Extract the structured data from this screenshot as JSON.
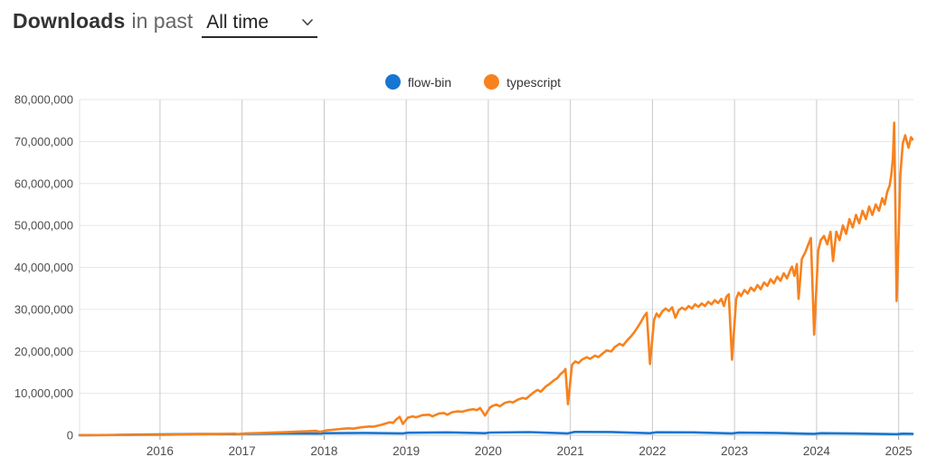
{
  "header": {
    "title_bold": "Downloads",
    "title_mid": "in past",
    "period_selected": "All time"
  },
  "legend": [
    {
      "name": "flow-bin",
      "color": "#1776d2"
    },
    {
      "name": "typescript",
      "color": "#f7821e"
    }
  ],
  "colors": {
    "flow_bin_line": "#1776d2",
    "typescript_line": "#f7821e",
    "h_gridline": "#e6e6e6",
    "v_gridline": "#c9c9c9",
    "axis_text": "#4d4d4d"
  },
  "chart_data": {
    "type": "line",
    "title": "Downloads in past All time",
    "xlabel": "",
    "ylabel": "",
    "values_unit": "millions of weekly downloads",
    "grid": true,
    "legend_position": "top-center",
    "x_axis": {
      "range": [
        2015.02,
        2025.18
      ],
      "ticks": [
        {
          "value": 2016,
          "label": "2016"
        },
        {
          "value": 2017,
          "label": "2017"
        },
        {
          "value": 2018,
          "label": "2018"
        },
        {
          "value": 2019,
          "label": "2019"
        },
        {
          "value": 2020,
          "label": "2020"
        },
        {
          "value": 2021,
          "label": "2021"
        },
        {
          "value": 2022,
          "label": "2022"
        },
        {
          "value": 2023,
          "label": "2023"
        },
        {
          "value": 2024,
          "label": "2024"
        },
        {
          "value": 2025,
          "label": "2025"
        }
      ]
    },
    "y_axis": {
      "range": [
        0,
        80
      ],
      "ticks": [
        {
          "value": 0,
          "label": "0"
        },
        {
          "value": 10,
          "label": "10,000,000"
        },
        {
          "value": 20,
          "label": "20,000,000"
        },
        {
          "value": 30,
          "label": "30,000,000"
        },
        {
          "value": 40,
          "label": "40,000,000"
        },
        {
          "value": 50,
          "label": "50,000,000"
        },
        {
          "value": 60,
          "label": "60,000,000"
        },
        {
          "value": 70,
          "label": "70,000,000"
        },
        {
          "value": 80,
          "label": "80,000,000"
        }
      ]
    },
    "series": [
      {
        "name": "flow-bin",
        "color": "#1776d2",
        "points": [
          [
            2015.02,
            0.03
          ],
          [
            2015.5,
            0.08
          ],
          [
            2016.0,
            0.2
          ],
          [
            2016.5,
            0.3
          ],
          [
            2016.96,
            0.25
          ],
          [
            2017.0,
            0.35
          ],
          [
            2017.5,
            0.45
          ],
          [
            2017.96,
            0.4
          ],
          [
            2018.0,
            0.5
          ],
          [
            2018.5,
            0.55
          ],
          [
            2018.96,
            0.45
          ],
          [
            2019.02,
            0.6
          ],
          [
            2019.5,
            0.68
          ],
          [
            2019.96,
            0.5
          ],
          [
            2020.02,
            0.65
          ],
          [
            2020.5,
            0.75
          ],
          [
            2020.97,
            0.45
          ],
          [
            2021.05,
            0.8
          ],
          [
            2021.5,
            0.78
          ],
          [
            2021.97,
            0.5
          ],
          [
            2022.05,
            0.72
          ],
          [
            2022.5,
            0.68
          ],
          [
            2022.97,
            0.45
          ],
          [
            2023.05,
            0.62
          ],
          [
            2023.5,
            0.55
          ],
          [
            2023.97,
            0.35
          ],
          [
            2024.05,
            0.5
          ],
          [
            2024.5,
            0.42
          ],
          [
            2024.975,
            0.25
          ],
          [
            2025.05,
            0.38
          ],
          [
            2025.17,
            0.35
          ]
        ]
      },
      {
        "name": "typescript",
        "color": "#f7821e",
        "points": [
          [
            2015.02,
            0.02
          ],
          [
            2015.3,
            0.04
          ],
          [
            2015.6,
            0.07
          ],
          [
            2015.9,
            0.11
          ],
          [
            2015.97,
            0.09
          ],
          [
            2016.1,
            0.14
          ],
          [
            2016.3,
            0.19
          ],
          [
            2016.5,
            0.25
          ],
          [
            2016.7,
            0.31
          ],
          [
            2016.9,
            0.38
          ],
          [
            2016.96,
            0.28
          ],
          [
            2017.05,
            0.45
          ],
          [
            2017.2,
            0.52
          ],
          [
            2017.35,
            0.62
          ],
          [
            2017.5,
            0.72
          ],
          [
            2017.65,
            0.84
          ],
          [
            2017.8,
            0.95
          ],
          [
            2017.9,
            1.05
          ],
          [
            2017.95,
            0.8
          ],
          [
            2018.02,
            1.15
          ],
          [
            2018.1,
            1.3
          ],
          [
            2018.2,
            1.5
          ],
          [
            2018.3,
            1.65
          ],
          [
            2018.35,
            1.58
          ],
          [
            2018.45,
            1.9
          ],
          [
            2018.55,
            2.1
          ],
          [
            2018.6,
            2.05
          ],
          [
            2018.7,
            2.5
          ],
          [
            2018.8,
            3.1
          ],
          [
            2018.84,
            2.95
          ],
          [
            2018.88,
            3.8
          ],
          [
            2018.92,
            4.4
          ],
          [
            2018.96,
            2.7
          ],
          [
            2019.02,
            4.2
          ],
          [
            2019.08,
            4.5
          ],
          [
            2019.12,
            4.3
          ],
          [
            2019.2,
            4.8
          ],
          [
            2019.28,
            4.9
          ],
          [
            2019.32,
            4.5
          ],
          [
            2019.4,
            5.2
          ],
          [
            2019.46,
            5.3
          ],
          [
            2019.5,
            4.9
          ],
          [
            2019.56,
            5.5
          ],
          [
            2019.62,
            5.7
          ],
          [
            2019.68,
            5.6
          ],
          [
            2019.75,
            6.0
          ],
          [
            2019.82,
            6.2
          ],
          [
            2019.86,
            6.0
          ],
          [
            2019.9,
            6.5
          ],
          [
            2019.96,
            4.7
          ],
          [
            2020.02,
            6.6
          ],
          [
            2020.06,
            7.1
          ],
          [
            2020.1,
            7.3
          ],
          [
            2020.14,
            6.9
          ],
          [
            2020.2,
            7.7
          ],
          [
            2020.26,
            8.0
          ],
          [
            2020.3,
            7.8
          ],
          [
            2020.36,
            8.5
          ],
          [
            2020.42,
            8.9
          ],
          [
            2020.46,
            8.7
          ],
          [
            2020.52,
            9.7
          ],
          [
            2020.56,
            10.3
          ],
          [
            2020.6,
            10.8
          ],
          [
            2020.64,
            10.4
          ],
          [
            2020.7,
            11.6
          ],
          [
            2020.75,
            12.3
          ],
          [
            2020.8,
            13.1
          ],
          [
            2020.84,
            13.6
          ],
          [
            2020.88,
            14.6
          ],
          [
            2020.92,
            15.2
          ],
          [
            2020.94,
            15.8
          ],
          [
            2020.97,
            7.4
          ],
          [
            2021.02,
            16.8
          ],
          [
            2021.06,
            17.6
          ],
          [
            2021.1,
            17.2
          ],
          [
            2021.14,
            18.0
          ],
          [
            2021.2,
            18.6
          ],
          [
            2021.24,
            18.2
          ],
          [
            2021.3,
            19.0
          ],
          [
            2021.34,
            18.6
          ],
          [
            2021.4,
            19.6
          ],
          [
            2021.44,
            20.2
          ],
          [
            2021.5,
            20.0
          ],
          [
            2021.54,
            21.0
          ],
          [
            2021.6,
            21.8
          ],
          [
            2021.64,
            21.4
          ],
          [
            2021.7,
            22.8
          ],
          [
            2021.74,
            23.6
          ],
          [
            2021.78,
            24.6
          ],
          [
            2021.82,
            25.8
          ],
          [
            2021.86,
            27.0
          ],
          [
            2021.9,
            28.4
          ],
          [
            2021.93,
            29.2
          ],
          [
            2021.97,
            17.0
          ],
          [
            2022.02,
            27.5
          ],
          [
            2022.05,
            29.0
          ],
          [
            2022.08,
            28.2
          ],
          [
            2022.12,
            29.5
          ],
          [
            2022.16,
            30.2
          ],
          [
            2022.2,
            29.6
          ],
          [
            2022.24,
            30.5
          ],
          [
            2022.28,
            28.0
          ],
          [
            2022.32,
            29.8
          ],
          [
            2022.36,
            30.4
          ],
          [
            2022.4,
            29.9
          ],
          [
            2022.44,
            30.8
          ],
          [
            2022.48,
            30.2
          ],
          [
            2022.52,
            31.2
          ],
          [
            2022.56,
            30.6
          ],
          [
            2022.6,
            31.4
          ],
          [
            2022.64,
            30.8
          ],
          [
            2022.68,
            31.8
          ],
          [
            2022.72,
            31.2
          ],
          [
            2022.76,
            32.2
          ],
          [
            2022.8,
            31.5
          ],
          [
            2022.84,
            32.5
          ],
          [
            2022.87,
            30.8
          ],
          [
            2022.9,
            33.0
          ],
          [
            2022.93,
            33.6
          ],
          [
            2022.97,
            18.0
          ],
          [
            2023.02,
            32.5
          ],
          [
            2023.05,
            34.0
          ],
          [
            2023.08,
            33.2
          ],
          [
            2023.12,
            34.6
          ],
          [
            2023.16,
            33.8
          ],
          [
            2023.2,
            35.2
          ],
          [
            2023.24,
            34.4
          ],
          [
            2023.28,
            35.8
          ],
          [
            2023.32,
            34.8
          ],
          [
            2023.36,
            36.4
          ],
          [
            2023.4,
            35.6
          ],
          [
            2023.44,
            37.2
          ],
          [
            2023.48,
            36.2
          ],
          [
            2023.52,
            37.8
          ],
          [
            2023.56,
            36.8
          ],
          [
            2023.6,
            38.6
          ],
          [
            2023.64,
            37.4
          ],
          [
            2023.68,
            39.4
          ],
          [
            2023.7,
            40.2
          ],
          [
            2023.73,
            38.0
          ],
          [
            2023.76,
            40.8
          ],
          [
            2023.78,
            32.5
          ],
          [
            2023.82,
            42.0
          ],
          [
            2023.86,
            43.5
          ],
          [
            2023.9,
            45.5
          ],
          [
            2023.93,
            47.0
          ],
          [
            2023.97,
            24.0
          ],
          [
            2024.02,
            44.0
          ],
          [
            2024.05,
            46.5
          ],
          [
            2024.09,
            47.5
          ],
          [
            2024.13,
            45.5
          ],
          [
            2024.17,
            48.5
          ],
          [
            2024.2,
            41.5
          ],
          [
            2024.24,
            48.5
          ],
          [
            2024.28,
            46.5
          ],
          [
            2024.32,
            50.0
          ],
          [
            2024.36,
            48.0
          ],
          [
            2024.4,
            51.5
          ],
          [
            2024.44,
            49.5
          ],
          [
            2024.48,
            52.5
          ],
          [
            2024.52,
            50.5
          ],
          [
            2024.56,
            53.5
          ],
          [
            2024.6,
            51.5
          ],
          [
            2024.64,
            54.5
          ],
          [
            2024.68,
            52.5
          ],
          [
            2024.72,
            55.0
          ],
          [
            2024.76,
            53.5
          ],
          [
            2024.8,
            56.5
          ],
          [
            2024.83,
            55.0
          ],
          [
            2024.86,
            58.0
          ],
          [
            2024.89,
            59.5
          ],
          [
            2024.91,
            62.0
          ],
          [
            2024.93,
            66.0
          ],
          [
            2024.945,
            74.5
          ],
          [
            2024.96,
            55.0
          ],
          [
            2024.975,
            32.0
          ],
          [
            2025.0,
            48.0
          ],
          [
            2025.02,
            62.0
          ],
          [
            2025.05,
            69.5
          ],
          [
            2025.08,
            71.5
          ],
          [
            2025.1,
            70.0
          ],
          [
            2025.12,
            68.5
          ],
          [
            2025.15,
            71.0
          ],
          [
            2025.17,
            70.5
          ]
        ]
      }
    ]
  }
}
